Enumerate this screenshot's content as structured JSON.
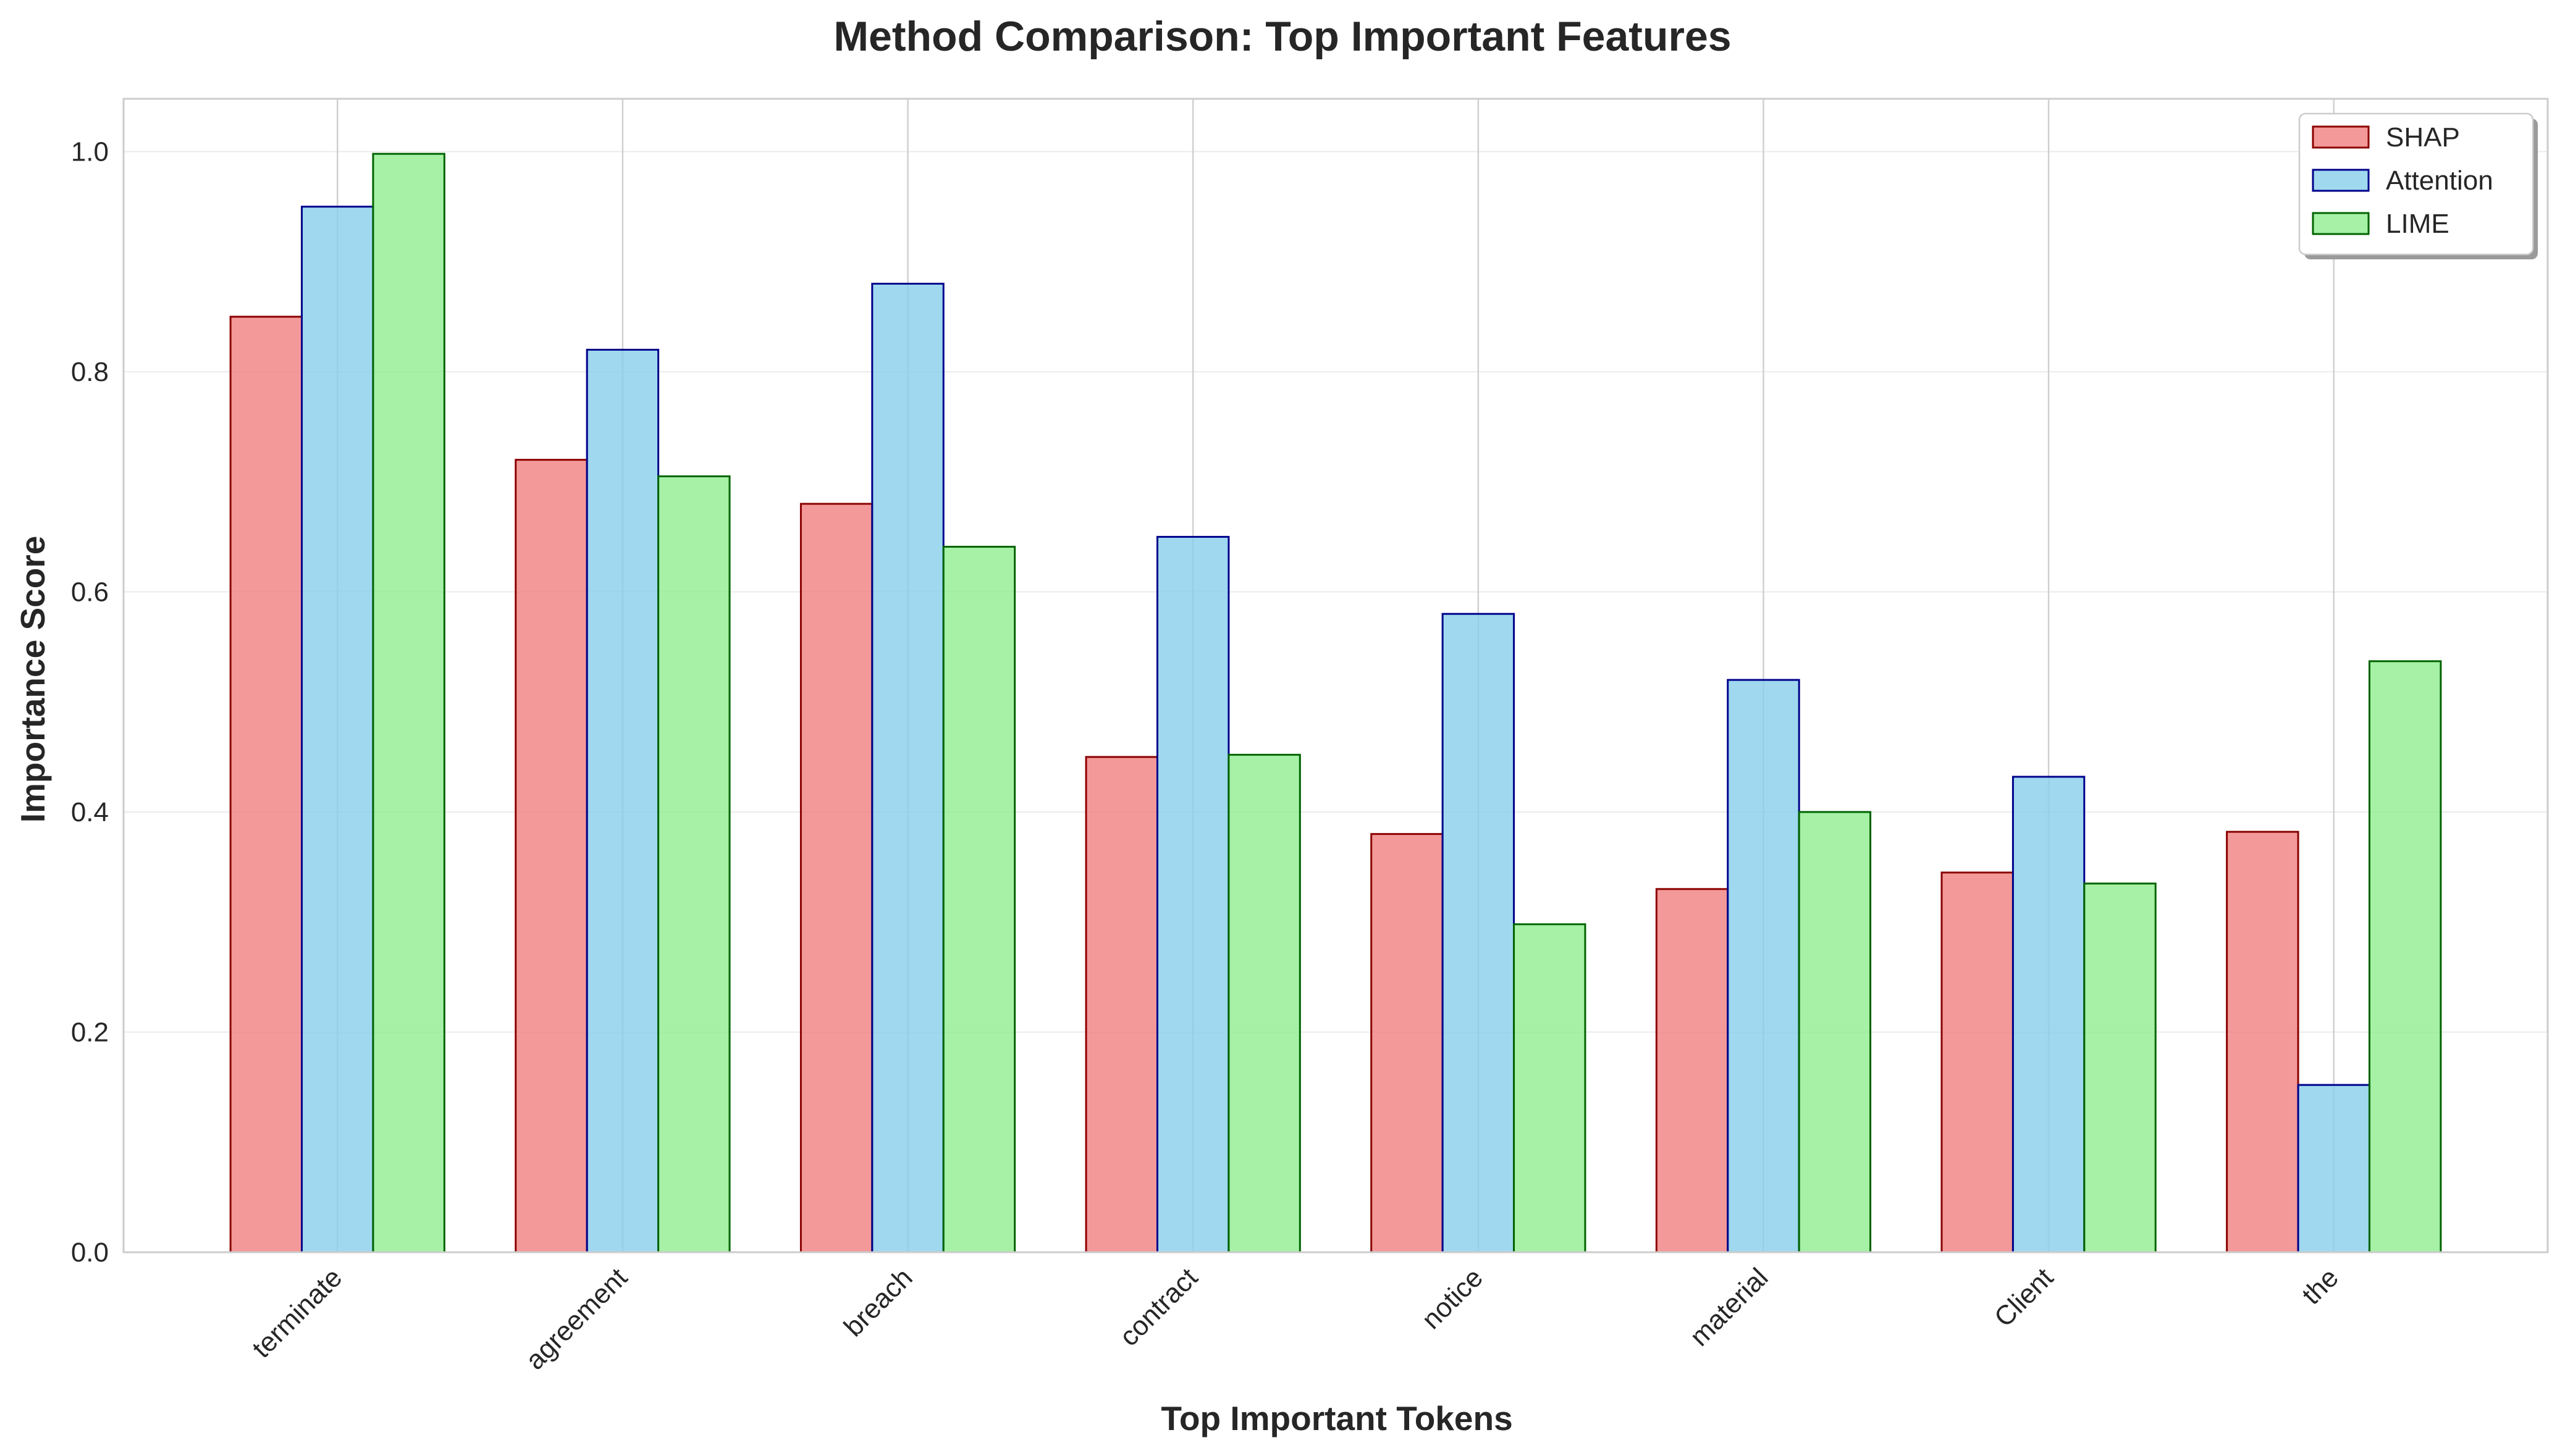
{
  "chart_data": {
    "type": "bar",
    "title": "Method Comparison: Top Important Features",
    "xlabel": "Top Important Tokens",
    "ylabel": "Importance Score",
    "categories": [
      "terminate",
      "agreement",
      "breach",
      "contract",
      "notice",
      "material",
      "Client",
      "the"
    ],
    "series": [
      {
        "name": "SHAP",
        "fill": "#f08080",
        "stroke": "#8b0000",
        "values": [
          0.85,
          0.72,
          0.68,
          0.45,
          0.38,
          0.33,
          0.345,
          0.382
        ]
      },
      {
        "name": "Attention",
        "fill": "#87ceeb",
        "stroke": "#00008b",
        "values": [
          0.95,
          0.82,
          0.88,
          0.65,
          0.58,
          0.52,
          0.432,
          0.152
        ]
      },
      {
        "name": "LIME",
        "fill": "#90ee90",
        "stroke": "#006400",
        "values": [
          0.998,
          0.705,
          0.641,
          0.452,
          0.298,
          0.4,
          0.335,
          0.537
        ]
      }
    ],
    "ylim": [
      0,
      1.048
    ],
    "yticks": [
      "0.0",
      "0.2",
      "0.4",
      "0.6",
      "0.8",
      "1.0"
    ],
    "grid": true,
    "legend": "top-right"
  }
}
